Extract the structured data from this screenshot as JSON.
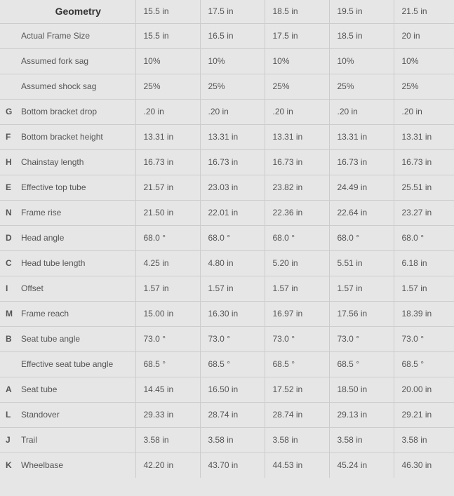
{
  "header": {
    "title": "Geometry",
    "sizes": [
      "15.5 in",
      "17.5 in",
      "18.5 in",
      "19.5 in",
      "21.5 in"
    ]
  },
  "rows": [
    {
      "letter": "",
      "label": "Actual Frame Size",
      "values": [
        "15.5 in",
        "16.5 in",
        "17.5 in",
        "18.5 in",
        "20 in"
      ]
    },
    {
      "letter": "",
      "label": "Assumed fork sag",
      "values": [
        "10%",
        "10%",
        "10%",
        "10%",
        "10%"
      ]
    },
    {
      "letter": "",
      "label": "Assumed shock sag",
      "values": [
        "25%",
        "25%",
        "25%",
        "25%",
        "25%"
      ]
    },
    {
      "letter": "G",
      "label": "Bottom bracket drop",
      "values": [
        ".20 in",
        ".20 in",
        ".20 in",
        ".20 in",
        ".20 in"
      ]
    },
    {
      "letter": "F",
      "label": "Bottom bracket height",
      "values": [
        "13.31 in",
        "13.31 in",
        "13.31 in",
        "13.31 in",
        "13.31 in"
      ]
    },
    {
      "letter": "H",
      "label": "Chainstay length",
      "values": [
        "16.73 in",
        "16.73 in",
        "16.73 in",
        "16.73 in",
        "16.73 in"
      ]
    },
    {
      "letter": "E",
      "label": "Effective top tube",
      "values": [
        "21.57 in",
        "23.03 in",
        "23.82 in",
        "24.49 in",
        "25.51 in"
      ]
    },
    {
      "letter": "N",
      "label": "Frame rise",
      "values": [
        "21.50 in",
        "22.01 in",
        "22.36 in",
        "22.64 in",
        "23.27 in"
      ]
    },
    {
      "letter": "D",
      "label": "Head angle",
      "values": [
        "68.0 °",
        "68.0 °",
        "68.0 °",
        "68.0 °",
        "68.0 °"
      ]
    },
    {
      "letter": "C",
      "label": "Head tube length",
      "values": [
        "4.25 in",
        "4.80 in",
        "5.20 in",
        "5.51 in",
        "6.18 in"
      ]
    },
    {
      "letter": "I",
      "label": "Offset",
      "values": [
        "1.57 in",
        "1.57 in",
        "1.57 in",
        "1.57 in",
        "1.57 in"
      ]
    },
    {
      "letter": "M",
      "label": "Frame reach",
      "values": [
        "15.00 in",
        "16.30 in",
        "16.97 in",
        "17.56 in",
        "18.39 in"
      ]
    },
    {
      "letter": "B",
      "label": "Seat tube angle",
      "values": [
        "73.0 °",
        "73.0 °",
        "73.0 °",
        "73.0 °",
        "73.0 °"
      ]
    },
    {
      "letter": "",
      "label": "Effective seat tube angle",
      "values": [
        "68.5 °",
        "68.5 °",
        "68.5 °",
        "68.5 °",
        "68.5 °"
      ]
    },
    {
      "letter": "A",
      "label": "Seat tube",
      "values": [
        "14.45 in",
        "16.50 in",
        "17.52 in",
        "18.50 in",
        "20.00 in"
      ]
    },
    {
      "letter": "L",
      "label": "Standover",
      "values": [
        "29.33 in",
        "28.74 in",
        "28.74 in",
        "29.13 in",
        "29.21 in"
      ]
    },
    {
      "letter": "J",
      "label": "Trail",
      "values": [
        "3.58 in",
        "3.58 in",
        "3.58 in",
        "3.58 in",
        "3.58 in"
      ]
    },
    {
      "letter": "K",
      "label": "Wheelbase",
      "values": [
        "42.20 in",
        "43.70 in",
        "44.53 in",
        "45.24 in",
        "46.30 in"
      ]
    }
  ]
}
